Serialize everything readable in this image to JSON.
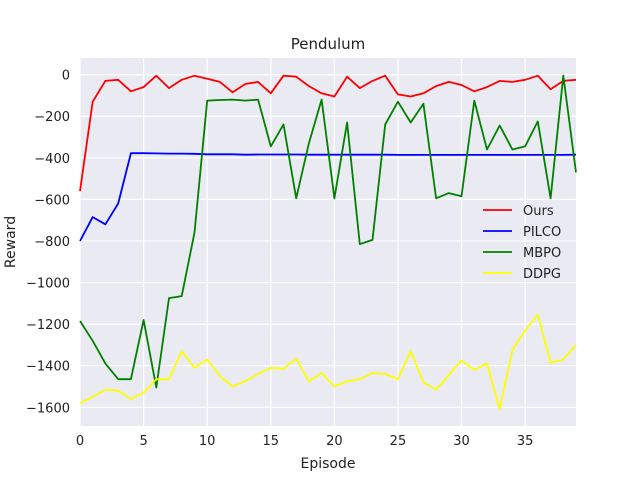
{
  "chart_data": {
    "type": "line",
    "title": "Pendulum",
    "xlabel": "Episode",
    "ylabel": "Reward",
    "xlim": [
      0,
      39
    ],
    "ylim": [
      -1690,
      80
    ],
    "xticks": [
      0,
      5,
      10,
      15,
      20,
      25,
      30,
      35
    ],
    "yticks": [
      0,
      -200,
      -400,
      -600,
      -800,
      -1000,
      -1200,
      -1400,
      -1600
    ],
    "ytick_labels": [
      "0",
      "−200",
      "−400",
      "−600",
      "−800",
      "−1000",
      "−1200",
      "−1400",
      "−1600"
    ],
    "grid": true,
    "legend_position": "center-right",
    "x": [
      0,
      1,
      2,
      3,
      4,
      5,
      6,
      7,
      8,
      9,
      10,
      11,
      12,
      13,
      14,
      15,
      16,
      17,
      18,
      19,
      20,
      21,
      22,
      23,
      24,
      25,
      26,
      27,
      28,
      29,
      30,
      31,
      32,
      33,
      34,
      35,
      36,
      37,
      38,
      39
    ],
    "series": [
      {
        "name": "Ours",
        "color": "#ff0000",
        "values": [
          -560,
          -130,
          -30,
          -25,
          -80,
          -60,
          -5,
          -65,
          -25,
          -5,
          -20,
          -35,
          -85,
          -45,
          -35,
          -90,
          -5,
          -10,
          -55,
          -90,
          -105,
          -10,
          -65,
          -30,
          -5,
          -95,
          -105,
          -90,
          -55,
          -35,
          -50,
          -80,
          -60,
          -30,
          -35,
          -25,
          -5,
          -70,
          -30,
          -25
        ]
      },
      {
        "name": "PILCO",
        "color": "#0000ff",
        "values": [
          -800,
          -685,
          -720,
          -620,
          -378,
          -378,
          -379,
          -380,
          -380,
          -381,
          -383,
          -383,
          -383,
          -385,
          -384,
          -384,
          -384,
          -384,
          -385,
          -385,
          -385,
          -385,
          -385,
          -385,
          -385,
          -386,
          -386,
          -386,
          -386,
          -386,
          -386,
          -386,
          -386,
          -386,
          -386,
          -386,
          -386,
          -386,
          -386,
          -385
        ]
      },
      {
        "name": "MBPO",
        "color": "#008000",
        "values": [
          -1185,
          -1280,
          -1390,
          -1465,
          -1465,
          -1180,
          -1505,
          -1075,
          -1065,
          -760,
          -125,
          -122,
          -120,
          -125,
          -120,
          -345,
          -240,
          -595,
          -330,
          -120,
          -595,
          -230,
          -815,
          -795,
          -240,
          -130,
          -230,
          -140,
          -595,
          -570,
          -585,
          -125,
          -360,
          -245,
          -360,
          -345,
          -225,
          -595,
          -5,
          -470
        ]
      },
      {
        "name": "DDPG",
        "color": "#ffff00",
        "values": [
          -1580,
          -1550,
          -1515,
          -1520,
          -1560,
          -1530,
          -1465,
          -1465,
          -1330,
          -1410,
          -1370,
          -1450,
          -1500,
          -1475,
          -1440,
          -1410,
          -1415,
          -1365,
          -1475,
          -1435,
          -1500,
          -1475,
          -1465,
          -1435,
          -1440,
          -1465,
          -1330,
          -1480,
          -1515,
          -1445,
          -1375,
          -1420,
          -1390,
          -1610,
          -1325,
          -1230,
          -1155,
          -1385,
          -1370,
          -1300
        ]
      }
    ]
  }
}
